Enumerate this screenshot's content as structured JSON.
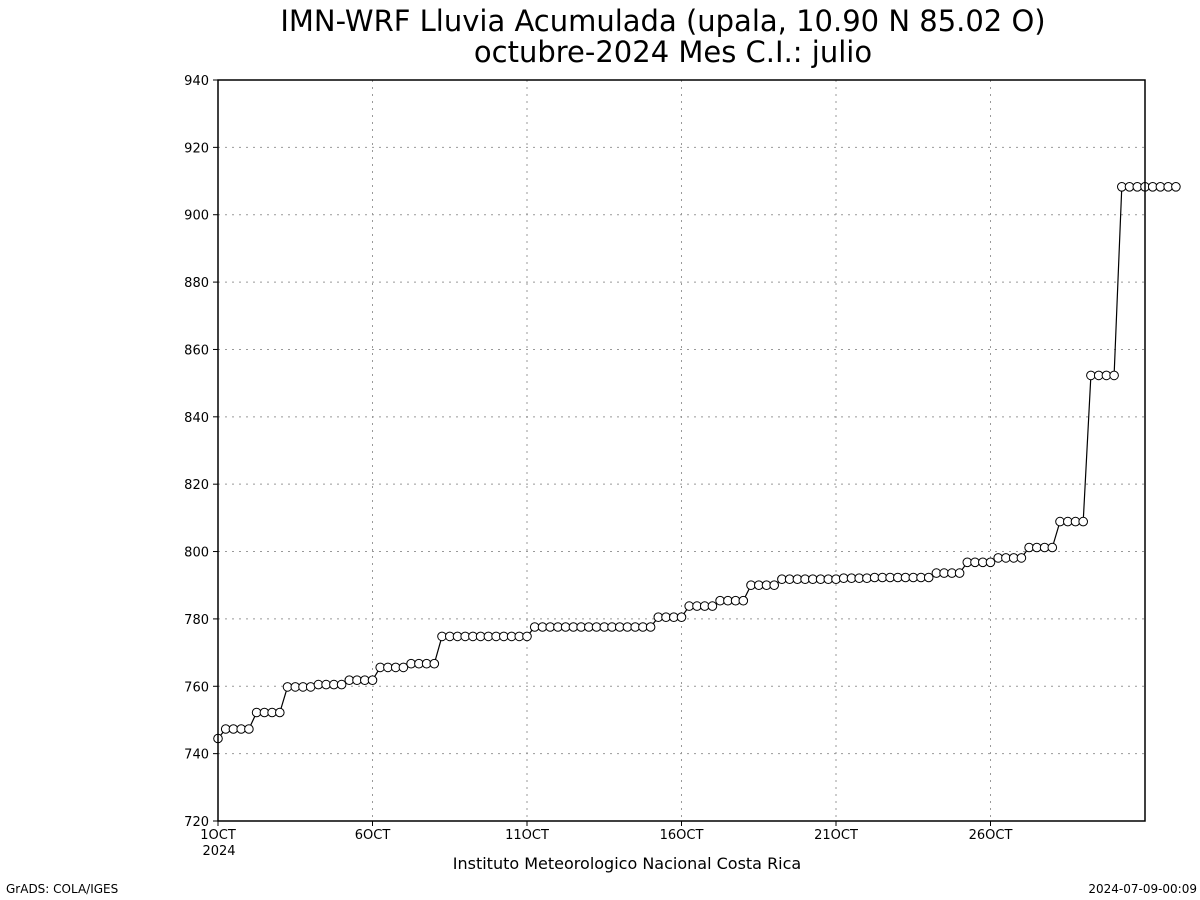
{
  "title_line1": "IMN-WRF  Lluvia Acumulada  (upala, 10.90  N 85.02  O)",
  "title_line2": "octubre-2024 Mes C.I.: julio",
  "source_label": "Instituto Meteorologico Nacional Costa Rica",
  "footer_left": "GrADS: COLA/IGES",
  "footer_right": "2024-07-09-00:09",
  "x_year_label": "2024",
  "colors": {
    "line": "#000000",
    "marker_fill": "#ffffff",
    "grid": "#999999",
    "frame": "#000000"
  },
  "chart_data": {
    "type": "line",
    "title": "IMN-WRF  Lluvia Acumulada  (upala, 10.90  N 85.02  O)",
    "subtitle": "octubre-2024 Mes C.I.: julio",
    "xlabel": "",
    "ylabel": "",
    "x_unit": "day of October 2024",
    "xlim": [
      1,
      31
    ],
    "ylim": [
      720,
      940
    ],
    "yticks": [
      720,
      740,
      760,
      780,
      800,
      820,
      840,
      860,
      880,
      900,
      920,
      940
    ],
    "xticks": [
      {
        "value": 1,
        "label": "1OCT"
      },
      {
        "value": 6,
        "label": "6OCT"
      },
      {
        "value": 11,
        "label": "11OCT"
      },
      {
        "value": 16,
        "label": "16OCT"
      },
      {
        "value": 21,
        "label": "21OCT"
      },
      {
        "value": 26,
        "label": "26OCT"
      }
    ],
    "grid": true,
    "marker": "open-circle",
    "series": [
      {
        "x_step": 0.25,
        "x_start": 1,
        "values": [
          744.5,
          747.3,
          747.3,
          747.3,
          747.3,
          752.2,
          752.2,
          752.2,
          752.2,
          759.8,
          759.8,
          759.8,
          759.8,
          760.5,
          760.5,
          760.5,
          760.5,
          761.8,
          761.8,
          761.8,
          761.8,
          765.6,
          765.6,
          765.6,
          765.6,
          766.7,
          766.7,
          766.7,
          766.7,
          774.8,
          774.8,
          774.8,
          774.8,
          774.8,
          774.8,
          774.8,
          774.8,
          774.8,
          774.8,
          774.8,
          774.8,
          777.6,
          777.6,
          777.6,
          777.6,
          777.6,
          777.6,
          777.6,
          777.6,
          777.6,
          777.6,
          777.6,
          777.6,
          777.6,
          777.6,
          777.6,
          777.6,
          780.5,
          780.5,
          780.5,
          780.5,
          783.8,
          783.8,
          783.8,
          783.8,
          785.4,
          785.4,
          785.4,
          785.4,
          790.0,
          790.0,
          790.0,
          790.0,
          791.8,
          791.8,
          791.8,
          791.8,
          791.8,
          791.8,
          791.8,
          791.8,
          792.1,
          792.1,
          792.1,
          792.1,
          792.3,
          792.3,
          792.3,
          792.3,
          792.3,
          792.3,
          792.3,
          792.3,
          793.6,
          793.6,
          793.6,
          793.6,
          796.8,
          796.8,
          796.8,
          796.8,
          798.1,
          798.1,
          798.1,
          798.1,
          801.2,
          801.2,
          801.2,
          801.2,
          808.9,
          808.9,
          808.9,
          808.9,
          852.3,
          852.3,
          852.3,
          852.3,
          908.3,
          908.3,
          908.3,
          908.3,
          908.3,
          908.3,
          908.3,
          908.3
        ]
      }
    ]
  }
}
